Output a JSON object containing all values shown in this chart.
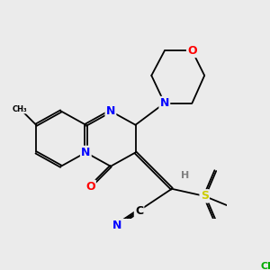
{
  "bg_color": "#ebebeb",
  "atom_colors": {
    "N": "#0000ff",
    "O": "#ff0000",
    "S": "#cccc00",
    "Cl": "#00aa00",
    "C": "#000000",
    "H": "#808080"
  },
  "bond_color": "#000000",
  "font_size_atoms": 9,
  "font_size_small": 8,
  "font_size_tiny": 6
}
